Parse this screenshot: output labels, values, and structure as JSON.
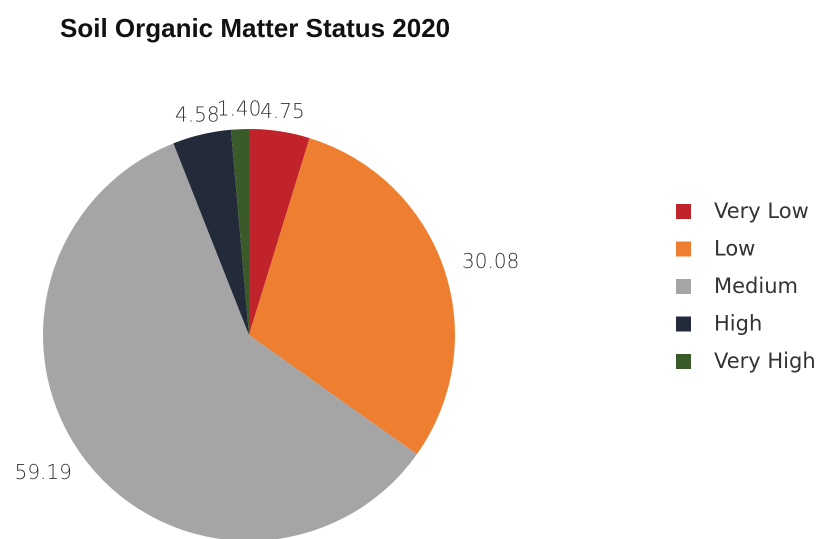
{
  "chart_data": {
    "type": "pie",
    "title": "Soil Organic Matter Status 2020",
    "categories": [
      "Very Low",
      "Low",
      "Medium",
      "High",
      "Very High"
    ],
    "values": [
      4.75,
      30.08,
      59.19,
      4.58,
      1.4
    ],
    "value_labels": [
      "4.75",
      "30.08",
      "59.19",
      "4.58",
      "1.40"
    ],
    "colors": [
      "#c0232a",
      "#ee7f30",
      "#a5a5a5",
      "#232a3a",
      "#3b5a2a"
    ],
    "legend": "right"
  }
}
